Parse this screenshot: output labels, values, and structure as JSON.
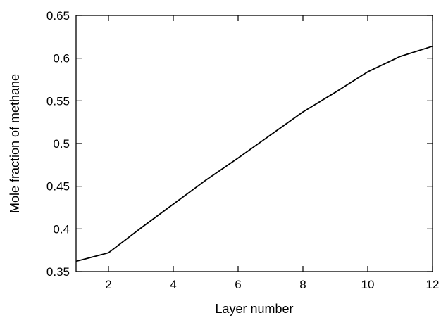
{
  "chart_data": {
    "type": "line",
    "title": "",
    "xlabel": "Layer number",
    "ylabel": "Mole fraction of methane",
    "xlim": [
      1,
      12
    ],
    "ylim": [
      0.35,
      0.65
    ],
    "xticks": [
      2,
      4,
      6,
      8,
      10,
      12
    ],
    "xtick_labels": [
      "2",
      "4",
      "6",
      "8",
      "10",
      "12"
    ],
    "yticks": [
      0.35,
      0.4,
      0.45,
      0.5,
      0.55,
      0.6,
      0.65
    ],
    "ytick_labels": [
      "0.35",
      "0.4",
      "0.45",
      "0.5",
      "0.55",
      "0.6",
      "0.65"
    ],
    "grid": false,
    "legend": "none",
    "series": [
      {
        "x": [
          1,
          2,
          3,
          4,
          5,
          6,
          7,
          8,
          9,
          10,
          11,
          12
        ],
        "y": [
          0.362,
          0.372,
          0.401,
          0.429,
          0.457,
          0.483,
          0.51,
          0.537,
          0.56,
          0.584,
          0.602,
          0.614
        ],
        "color": "#000000"
      }
    ]
  }
}
